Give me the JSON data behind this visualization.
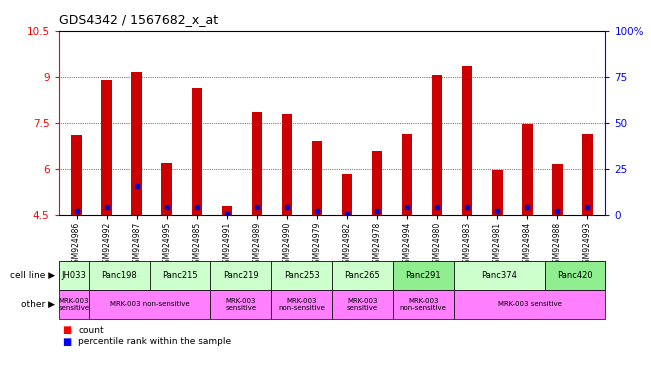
{
  "title": "GDS4342 / 1567682_x_at",
  "samples": [
    "GSM924986",
    "GSM924992",
    "GSM924987",
    "GSM924995",
    "GSM924985",
    "GSM924991",
    "GSM924989",
    "GSM924990",
    "GSM924979",
    "GSM924982",
    "GSM924978",
    "GSM924994",
    "GSM924980",
    "GSM924983",
    "GSM924981",
    "GSM924984",
    "GSM924988",
    "GSM924993"
  ],
  "bar_values": [
    7.1,
    8.9,
    9.15,
    6.2,
    8.65,
    4.8,
    7.85,
    7.8,
    6.9,
    5.85,
    6.6,
    7.15,
    9.05,
    9.35,
    5.95,
    7.45,
    6.15,
    7.15
  ],
  "percentile_values": [
    4.62,
    4.75,
    5.45,
    4.75,
    4.75,
    4.52,
    4.75,
    4.75,
    4.62,
    4.52,
    4.62,
    4.75,
    4.75,
    4.75,
    4.62,
    4.75,
    4.62,
    4.75
  ],
  "cell_lines": [
    {
      "label": "JH033",
      "start": 0,
      "end": 1,
      "color": "#ccffcc"
    },
    {
      "label": "Panc198",
      "start": 1,
      "end": 3,
      "color": "#ccffcc"
    },
    {
      "label": "Panc215",
      "start": 3,
      "end": 5,
      "color": "#ccffcc"
    },
    {
      "label": "Panc219",
      "start": 5,
      "end": 7,
      "color": "#ccffcc"
    },
    {
      "label": "Panc253",
      "start": 7,
      "end": 9,
      "color": "#ccffcc"
    },
    {
      "label": "Panc265",
      "start": 9,
      "end": 11,
      "color": "#ccffcc"
    },
    {
      "label": "Panc291",
      "start": 11,
      "end": 13,
      "color": "#90ee90"
    },
    {
      "label": "Panc374",
      "start": 13,
      "end": 16,
      "color": "#ccffcc"
    },
    {
      "label": "Panc420",
      "start": 16,
      "end": 18,
      "color": "#90ee90"
    }
  ],
  "other_groups": [
    {
      "label": "MRK-003\nsensitive",
      "start": 0,
      "end": 1,
      "color": "#ff80ff"
    },
    {
      "label": "MRK-003 non-sensitive",
      "start": 1,
      "end": 5,
      "color": "#ff80ff"
    },
    {
      "label": "MRK-003\nsensitive",
      "start": 5,
      "end": 7,
      "color": "#ff80ff"
    },
    {
      "label": "MRK-003\nnon-sensitive",
      "start": 7,
      "end": 9,
      "color": "#ff80ff"
    },
    {
      "label": "MRK-003\nsensitive",
      "start": 9,
      "end": 11,
      "color": "#ff80ff"
    },
    {
      "label": "MRK-003\nnon-sensitive",
      "start": 11,
      "end": 13,
      "color": "#ff80ff"
    },
    {
      "label": "MRK-003 sensitive",
      "start": 13,
      "end": 18,
      "color": "#ff80ff"
    }
  ],
  "ylim_left": [
    4.5,
    10.5
  ],
  "ylim_right": [
    0,
    100
  ],
  "yticks_left": [
    4.5,
    6.0,
    7.5,
    9.0,
    10.5
  ],
  "yticks_right": [
    0,
    25,
    50,
    75,
    100
  ],
  "ytick_labels_left": [
    "4.5",
    "6",
    "7.5",
    "9",
    "10.5"
  ],
  "ytick_labels_right": [
    "0",
    "25",
    "50",
    "75",
    "100%"
  ],
  "bar_color": "#cc0000",
  "dot_color": "#0000cc",
  "bar_width": 0.35,
  "background_color": "#ffffff"
}
